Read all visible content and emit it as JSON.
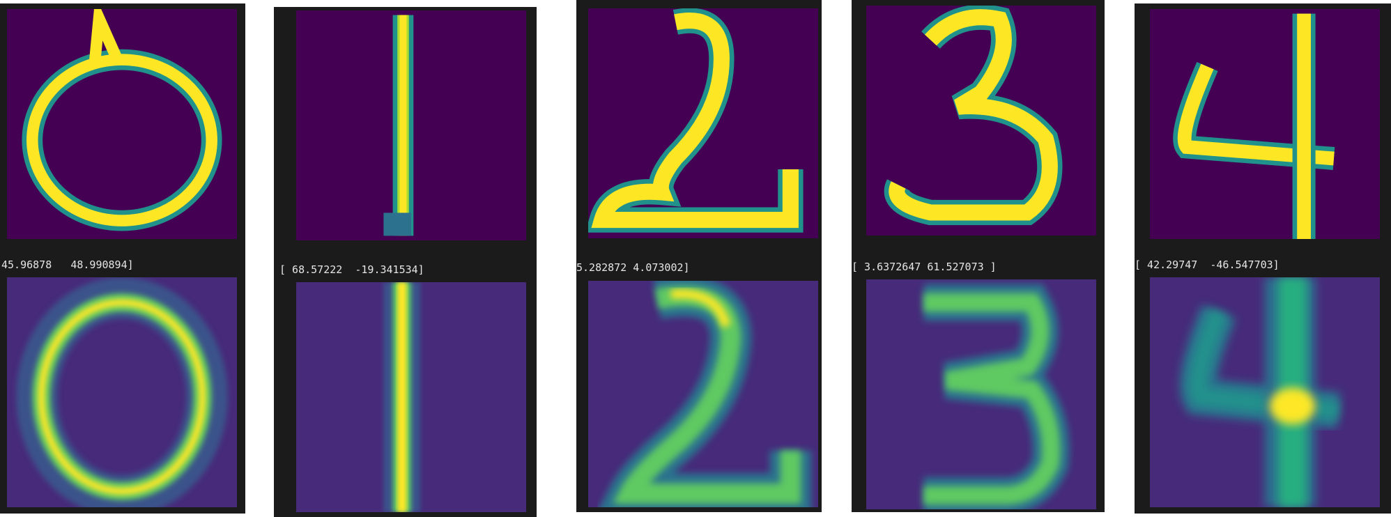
{
  "colors": {
    "background": "#ffffff",
    "panel": "#1b1b1b",
    "text": "#e6e6e6",
    "viridis": [
      "#440154",
      "#472a7a",
      "#3b528b",
      "#2c728e",
      "#21918c",
      "#28ae80",
      "#5ec962",
      "#addc30",
      "#fde725"
    ]
  },
  "panels": [
    {
      "digit": "0",
      "latent_text": "45.96878   48.990894]"
    },
    {
      "digit": "1",
      "latent_text": "[ 68.57222  -19.341534]"
    },
    {
      "digit": "2",
      "latent_text": "5.282872 4.073002]"
    },
    {
      "digit": "3",
      "latent_text": "[ 3.6372647 61.527073 ]"
    },
    {
      "digit": "4",
      "latent_text": "[ 42.29747  -46.547703]"
    }
  ]
}
